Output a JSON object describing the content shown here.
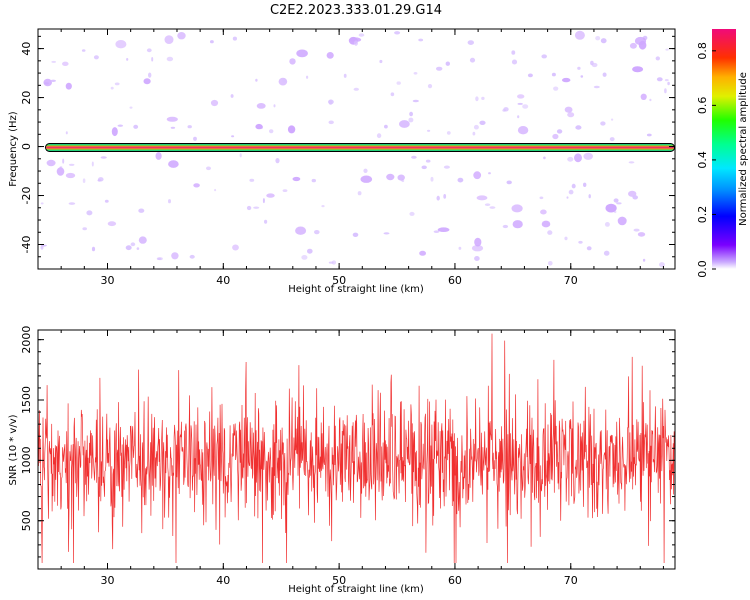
{
  "title": "C2E2.2023.333.01.29.G14",
  "colors": {
    "snr_line": "#f03030",
    "band_outer": "#000000",
    "band_core": "#f0306a",
    "speckle": "#d9c2ff"
  },
  "chart_data": [
    {
      "type": "heatmap",
      "name": "spectrogram",
      "xlabel": "Height of straight line (km)",
      "ylabel": "Frequency (Hz)",
      "xlim": [
        24.0,
        79.0
      ],
      "ylim": [
        -50,
        48
      ],
      "xticks": [
        30,
        40,
        50,
        60,
        70
      ],
      "yticks": [
        -40,
        -20,
        0,
        20,
        40
      ],
      "colorbar": {
        "label": "Normalized spectral amplitude",
        "range": [
          0.0,
          0.88
        ],
        "ticks": [
          "0.0",
          "0.2",
          "0.4",
          "0.6",
          "0.8"
        ],
        "colormap": "gist_ncar-like (white-violet-blue-cyan-green-yellow-red-pink)"
      },
      "band": {
        "frequency_hz": 0,
        "amplitude": "approx 0.6-0.88"
      },
      "background": "sparse low-amplitude speckles (approx 0.0-0.1)"
    },
    {
      "type": "line",
      "name": "snr",
      "xlabel": "Height of straight line (km)",
      "ylabel": "SNR (10 * v/v)",
      "xlim": [
        24.0,
        79.0
      ],
      "ylim": [
        100,
        2080
      ],
      "xticks": [
        30,
        40,
        50,
        60,
        70
      ],
      "yticks": [
        500,
        1000,
        1500,
        2000
      ],
      "series_summary": {
        "mean": 1000,
        "typical_range": [
          500,
          1500
        ],
        "max": 2050,
        "min": 150
      }
    }
  ]
}
